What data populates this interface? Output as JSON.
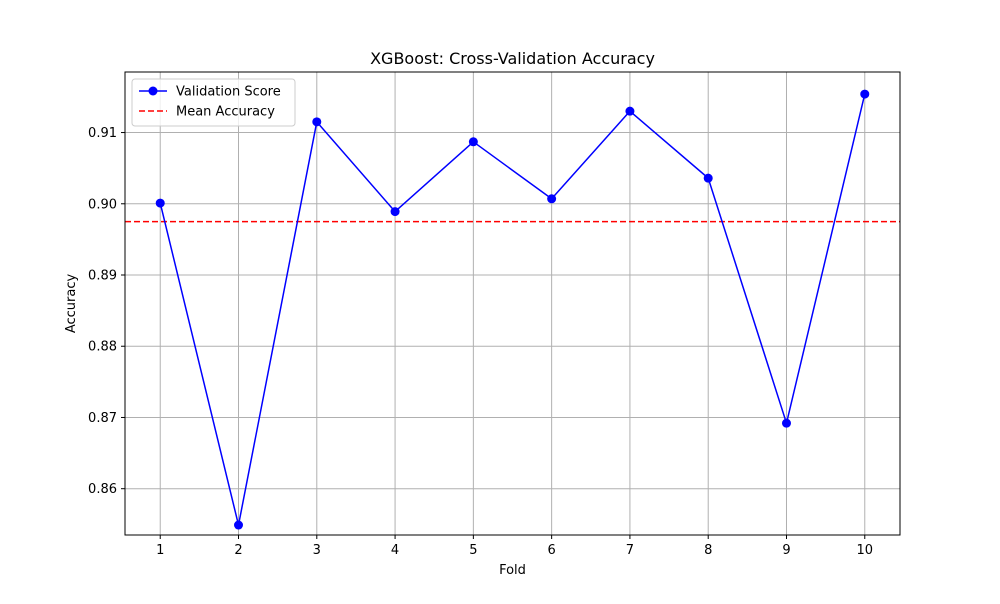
{
  "chart_data": {
    "type": "line",
    "title": "XGBoost: Cross-Validation Accuracy",
    "xlabel": "Fold",
    "ylabel": "Accuracy",
    "x": [
      1,
      2,
      3,
      4,
      5,
      6,
      7,
      8,
      9,
      10
    ],
    "x_tick_labels": [
      "1",
      "2",
      "3",
      "4",
      "5",
      "6",
      "7",
      "8",
      "9",
      "10"
    ],
    "y_ticks": [
      0.86,
      0.87,
      0.88,
      0.89,
      0.9,
      0.91
    ],
    "y_tick_labels": [
      "0.86",
      "0.87",
      "0.88",
      "0.89",
      "0.90",
      "0.91"
    ],
    "xlim": [
      0.55,
      10.45
    ],
    "ylim": [
      0.8535,
      0.9185
    ],
    "grid": true,
    "legend_position": "top-left",
    "series": [
      {
        "name": "Validation Score",
        "values": [
          0.9001,
          0.8549,
          0.9115,
          0.8989,
          0.9087,
          0.9007,
          0.913,
          0.9036,
          0.8692,
          0.9154
        ],
        "color": "#0000ff",
        "marker": "circle",
        "line_style": "solid"
      }
    ],
    "reference_lines": [
      {
        "name": "Mean Accuracy",
        "value": 0.8975,
        "color": "#ff0000",
        "line_style": "dashed"
      }
    ]
  },
  "colors": {
    "grid": "#b0b0b0",
    "axis": "#000000",
    "legend_border": "#cccccc"
  }
}
